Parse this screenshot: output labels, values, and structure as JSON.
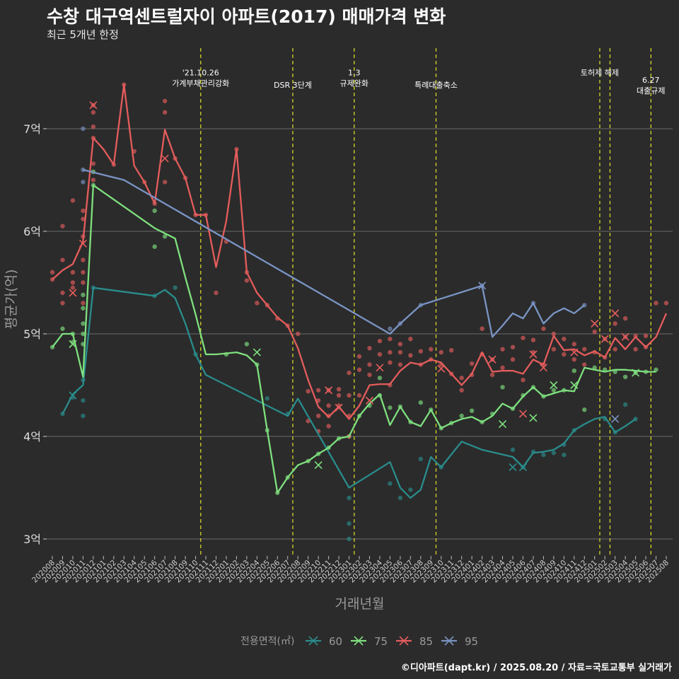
{
  "title": "수창 대구역센트럴자이 아파트(2017) 매매가격 변화",
  "subtitle": "최근 5개년 한정",
  "caption": "©디아파트(dapt.kr) / 2025.08.20 / 자료=국토교통부 실거래가",
  "chart_data": {
    "type": "line",
    "xlabel": "거래년월",
    "ylabel": "평균가(억)",
    "y_unit": "억",
    "ylim": [
      2.8,
      7.5
    ],
    "y_ticks": [
      3,
      4,
      5,
      6,
      7
    ],
    "y_tick_labels": [
      "3억",
      "4억",
      "5억",
      "6억",
      "7억"
    ],
    "grid": "horizontal",
    "legend": {
      "title": "전용면적(㎡)",
      "position": "bottom"
    },
    "categories": [
      "202008",
      "202009",
      "202010",
      "202011",
      "202012",
      "202101",
      "202102",
      "202103",
      "202104",
      "202105",
      "202106",
      "202107",
      "202108",
      "202109",
      "202110",
      "202111",
      "202112",
      "202201",
      "202202",
      "202203",
      "202204",
      "202205",
      "202206",
      "202207",
      "202208",
      "202209",
      "202210",
      "202211",
      "202212",
      "202301",
      "202302",
      "202303",
      "202304",
      "202305",
      "202306",
      "202307",
      "202308",
      "202309",
      "202310",
      "202311",
      "202312",
      "202401",
      "202402",
      "202403",
      "202404",
      "202405",
      "202406",
      "202407",
      "202408",
      "202409",
      "202410",
      "202411",
      "202412",
      "202501",
      "202502",
      "202503",
      "202504",
      "202505",
      "202506",
      "202507",
      "202508"
    ],
    "series": [
      {
        "name": "60",
        "color": "#2a8c8c",
        "x": [
          1,
          2,
          3,
          4,
          10,
          11,
          12,
          13,
          14,
          15,
          19,
          23,
          24,
          29,
          33,
          34,
          35,
          36,
          37,
          38,
          40,
          42,
          45,
          46,
          47,
          48,
          49,
          50,
          51,
          52,
          53,
          54,
          55,
          56,
          57
        ],
        "y": [
          4.22,
          4.41,
          4.5,
          5.45,
          5.37,
          5.43,
          5.35,
          5.1,
          4.8,
          4.6,
          4.4,
          4.2,
          4.37,
          3.5,
          3.75,
          3.5,
          3.4,
          3.48,
          3.8,
          3.7,
          3.95,
          3.87,
          3.8,
          3.7,
          3.84,
          3.85,
          3.87,
          3.93,
          4.06,
          4.12,
          4.17,
          4.19,
          4.04,
          4.1,
          4.17
        ]
      },
      {
        "name": "75",
        "color": "#7ee07e",
        "x": [
          0,
          1,
          2,
          3,
          4,
          10,
          11,
          12,
          13,
          14,
          15,
          16,
          17,
          18,
          19,
          20,
          21,
          22,
          23,
          24,
          25,
          26,
          27,
          28,
          29,
          30,
          31,
          32,
          33,
          34,
          35,
          36,
          37,
          38,
          39,
          40,
          41,
          42,
          43,
          44,
          45,
          46,
          47,
          48,
          49,
          50,
          51,
          52,
          53,
          54,
          55,
          56,
          57,
          58,
          59
        ],
        "y": [
          4.87,
          5.0,
          5.0,
          4.58,
          6.45,
          6.03,
          5.98,
          5.93,
          5.55,
          5.19,
          4.8,
          4.8,
          4.81,
          4.82,
          4.79,
          4.7,
          4.06,
          3.45,
          3.6,
          3.72,
          3.76,
          3.83,
          3.89,
          3.98,
          4.0,
          4.2,
          4.32,
          4.41,
          4.11,
          4.29,
          4.14,
          4.1,
          4.26,
          4.08,
          4.13,
          4.17,
          4.19,
          4.14,
          4.2,
          4.32,
          4.27,
          4.39,
          4.48,
          4.39,
          4.42,
          4.45,
          4.44,
          4.67,
          4.65,
          4.63,
          4.65,
          4.65,
          4.64,
          4.63,
          4.63
        ]
      },
      {
        "name": "85",
        "color": "#e55c5c",
        "x": [
          0,
          1,
          2,
          3,
          4,
          5,
          6,
          7,
          8,
          9,
          10,
          11,
          12,
          13,
          14,
          15,
          16,
          17,
          18,
          19,
          20,
          21,
          22,
          23,
          24,
          25,
          26,
          27,
          28,
          29,
          30,
          31,
          32,
          33,
          34,
          35,
          36,
          37,
          38,
          39,
          40,
          41,
          42,
          43,
          44,
          45,
          46,
          47,
          48,
          49,
          50,
          51,
          52,
          53,
          54,
          55,
          56,
          57,
          58,
          59,
          60
        ],
        "y": [
          5.53,
          5.62,
          5.68,
          5.9,
          6.91,
          6.8,
          6.65,
          7.43,
          6.64,
          6.48,
          6.27,
          6.99,
          6.71,
          6.52,
          6.16,
          6.16,
          5.65,
          6.1,
          6.8,
          5.6,
          5.4,
          5.28,
          5.16,
          5.08,
          4.86,
          4.55,
          4.29,
          4.19,
          4.29,
          4.17,
          4.3,
          4.5,
          4.51,
          4.51,
          4.64,
          4.72,
          4.7,
          4.75,
          4.72,
          4.61,
          4.5,
          4.61,
          4.82,
          4.63,
          4.64,
          4.64,
          4.61,
          4.75,
          4.7,
          4.98,
          4.84,
          4.85,
          4.79,
          4.83,
          4.77,
          4.96,
          4.85,
          4.97,
          4.87,
          4.97,
          5.2
        ]
      },
      {
        "name": "95",
        "color": "#7a94c4",
        "x": [
          3,
          7,
          33,
          34,
          36,
          42,
          43,
          44,
          45,
          46,
          47,
          48,
          49,
          50,
          51,
          52
        ],
        "y": [
          6.6,
          6.5,
          5.0,
          5.1,
          5.28,
          5.47,
          4.97,
          5.08,
          5.2,
          5.15,
          5.3,
          5.1,
          5.2,
          5.25,
          5.2,
          5.28
        ]
      }
    ],
    "scatter_points": [
      {
        "series": "60",
        "x": [
          1,
          2,
          3,
          3,
          3,
          4,
          10,
          12,
          14,
          21,
          23,
          29,
          29,
          29,
          33,
          34,
          35,
          36,
          38,
          45,
          46,
          47,
          48,
          49,
          50,
          50,
          51,
          54,
          55,
          56,
          57
        ],
        "y": [
          4.22,
          4.38,
          4.55,
          4.35,
          4.2,
          5.45,
          5.37,
          5.45,
          4.8,
          4.37,
          4.22,
          3.4,
          3.15,
          3.0,
          3.54,
          3.4,
          3.48,
          3.78,
          3.7,
          3.87,
          3.7,
          3.85,
          3.82,
          3.84,
          3.92,
          3.82,
          4.06,
          4.17,
          4.04,
          4.31,
          4.17
        ]
      },
      {
        "series": "75",
        "x": [
          0,
          1,
          2,
          2,
          3,
          3,
          3,
          3,
          3,
          4,
          4,
          10,
          10,
          11,
          17,
          19,
          20,
          21,
          22,
          23,
          25,
          26,
          27,
          28,
          29,
          30,
          31,
          32,
          32,
          33,
          34,
          35,
          36,
          37,
          38,
          39,
          40,
          41,
          42,
          43,
          44,
          45,
          46,
          47,
          48,
          49,
          50,
          51,
          52,
          53,
          54,
          55,
          56,
          57,
          58,
          59
        ],
        "y": [
          4.87,
          5.05,
          5.0,
          4.92,
          5.38,
          5.25,
          5.1,
          5.0,
          4.9,
          6.58,
          6.45,
          6.2,
          5.85,
          5.95,
          4.8,
          4.9,
          4.7,
          4.06,
          3.45,
          3.6,
          3.76,
          3.83,
          3.89,
          3.98,
          4.0,
          4.2,
          4.3,
          4.57,
          4.4,
          4.28,
          4.29,
          4.14,
          4.33,
          4.26,
          4.08,
          4.13,
          4.2,
          4.25,
          4.14,
          4.22,
          4.48,
          4.27,
          4.4,
          4.48,
          4.39,
          4.45,
          4.45,
          4.64,
          4.26,
          4.67,
          4.65,
          4.63,
          4.58,
          4.62,
          4.63,
          4.65
        ]
      },
      {
        "series": "85",
        "x": [
          0,
          0,
          1,
          1,
          1,
          1,
          2,
          2,
          2,
          2,
          3,
          3,
          3,
          3,
          3,
          3,
          3,
          4,
          4,
          4,
          4,
          4,
          4,
          6,
          7,
          8,
          9,
          10,
          11,
          11,
          11,
          12,
          13,
          14,
          15,
          16,
          17,
          18,
          19,
          19,
          20,
          21,
          22,
          23,
          24,
          25,
          25,
          26,
          26,
          26,
          26,
          27,
          27,
          27,
          27,
          28,
          28,
          28,
          29,
          29,
          29,
          29,
          30,
          30,
          30,
          31,
          31,
          31,
          32,
          32,
          33,
          33,
          33,
          33,
          34,
          34,
          34,
          35,
          35,
          36,
          36,
          37,
          37,
          38,
          38,
          39,
          39,
          40,
          40,
          41,
          41,
          42,
          42,
          43,
          43,
          44,
          44,
          45,
          45,
          46,
          46,
          47,
          47,
          48,
          48,
          49,
          49,
          50,
          50,
          51,
          51,
          52,
          52,
          53,
          53,
          54,
          54,
          55,
          55,
          56,
          56,
          57,
          57,
          58,
          58,
          59,
          60
        ],
        "y": [
          5.6,
          5.53,
          6.05,
          5.4,
          5.3,
          5.72,
          6.3,
          5.6,
          5.5,
          5.45,
          6.2,
          6.12,
          5.95,
          5.72,
          5.6,
          5.5,
          5.3,
          7.23,
          7.16,
          7.02,
          6.91,
          6.66,
          6.5,
          6.65,
          7.43,
          6.78,
          6.48,
          6.27,
          7.27,
          7.16,
          6.48,
          6.71,
          6.52,
          6.16,
          6.16,
          5.4,
          5.9,
          6.8,
          5.6,
          5.52,
          5.3,
          5.28,
          5.15,
          5.08,
          5.0,
          4.44,
          4.15,
          4.45,
          4.35,
          4.2,
          4.05,
          4.45,
          4.3,
          4.2,
          4.1,
          4.46,
          4.4,
          4.3,
          4.62,
          4.4,
          4.2,
          4.0,
          4.78,
          4.65,
          4.4,
          4.86,
          4.7,
          4.6,
          4.93,
          4.8,
          4.95,
          4.82,
          4.72,
          4.5,
          4.9,
          4.82,
          4.7,
          4.95,
          4.79,
          4.83,
          4.7,
          4.85,
          4.75,
          4.82,
          4.7,
          4.84,
          4.61,
          4.57,
          4.45,
          4.71,
          4.6,
          5.05,
          4.8,
          4.75,
          4.6,
          4.85,
          4.67,
          4.87,
          4.75,
          4.96,
          4.55,
          4.94,
          4.82,
          5.05,
          4.7,
          5.0,
          4.85,
          4.95,
          4.8,
          4.9,
          4.75,
          4.85,
          4.7,
          5.02,
          4.82,
          4.95,
          4.77,
          5.1,
          4.85,
          5.15,
          4.97,
          4.98,
          4.85,
          4.98,
          4.87,
          5.3,
          5.3
        ]
      },
      {
        "series": "95",
        "x": [
          3,
          3,
          3,
          33,
          34,
          36,
          42,
          47,
          52
        ],
        "y": [
          7.0,
          6.6,
          6.48,
          5.05,
          5.1,
          5.28,
          5.47,
          5.3,
          5.28
        ]
      }
    ],
    "markers_x": [
      {
        "series": "60",
        "x": [
          2,
          45,
          46
        ],
        "y": [
          4.4,
          3.7,
          3.7
        ]
      },
      {
        "series": "75",
        "x": [
          2,
          20,
          26,
          44,
          47,
          49,
          51,
          57
        ],
        "y": [
          4.9,
          4.82,
          3.72,
          4.12,
          4.18,
          4.5,
          4.5,
          4.62
        ]
      },
      {
        "series": "85",
        "x": [
          2,
          3,
          4,
          11,
          27,
          28,
          31,
          32,
          38,
          43,
          46,
          47,
          48,
          51,
          53,
          54,
          55,
          56
        ],
        "y": [
          5.4,
          5.88,
          7.23,
          6.71,
          4.45,
          4.28,
          4.35,
          4.67,
          4.66,
          4.75,
          4.22,
          4.8,
          4.67,
          4.82,
          5.1,
          4.95,
          5.2,
          4.97
        ]
      },
      {
        "series": "95",
        "x": [
          42,
          55
        ],
        "y": [
          5.47,
          4.17
        ]
      }
    ],
    "events": [
      {
        "x": 14.5,
        "label": [
          "'21.10.26",
          "가계부채관리강화"
        ],
        "label_y": 7.52
      },
      {
        "x": 23.5,
        "label": [
          "DSR 3단계"
        ],
        "label_y": 7.4
      },
      {
        "x": 29.5,
        "label": [
          "1.3",
          "규제완화"
        ],
        "label_y": 7.52
      },
      {
        "x": 37.5,
        "label": [
          "특례대출축소"
        ],
        "label_y": 7.4
      },
      {
        "x": 53.5,
        "label": [
          "토허제 해제"
        ],
        "label_y": 7.52
      },
      {
        "x": 54.5,
        "label": [],
        "label_y": 7.52
      },
      {
        "x": 58.5,
        "label": [
          "6.27",
          "대출규제"
        ],
        "label_y": 7.45
      }
    ]
  }
}
